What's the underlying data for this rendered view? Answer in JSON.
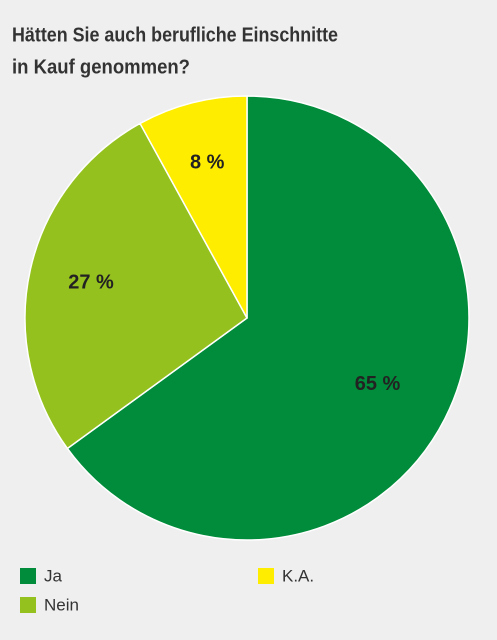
{
  "chart_data": {
    "type": "pie",
    "title": [
      "Hätten Sie auch berufliche Einschnitte",
      "in Kauf genommen?"
    ],
    "categories": [
      "Ja",
      "Nein",
      "K.A."
    ],
    "values": [
      65,
      27,
      8
    ],
    "value_labels": [
      "65 %",
      "27 %",
      "8 %"
    ],
    "colors": [
      "#008c3a",
      "#95c11f",
      "#ffed00"
    ]
  }
}
